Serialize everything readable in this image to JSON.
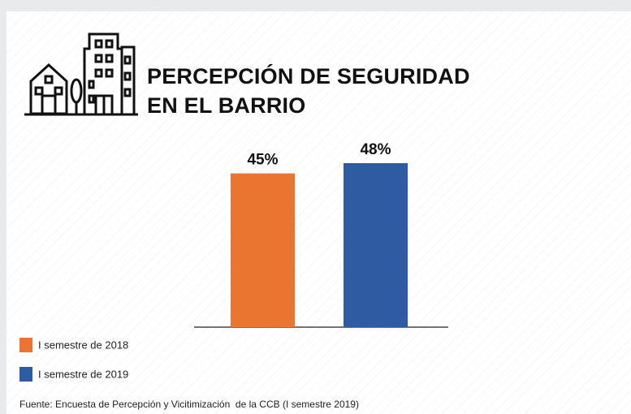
{
  "chart_data": {
    "type": "bar",
    "title": "PERCEPCIÓN DE SEGURIDAD EN EL BARRIO",
    "series": [
      {
        "name": "I semestre de 2018",
        "color": "#ea7530",
        "values": [
          45
        ],
        "value_labels": [
          "45%"
        ]
      },
      {
        "name": "I semestre de 2019",
        "color": "#2f5ba3",
        "values": [
          48
        ],
        "value_labels": [
          "48%"
        ]
      }
    ],
    "source": "Fuente: Encuesta de Percepción y Vicitimización  de la CCB (I semestre 2019)"
  }
}
